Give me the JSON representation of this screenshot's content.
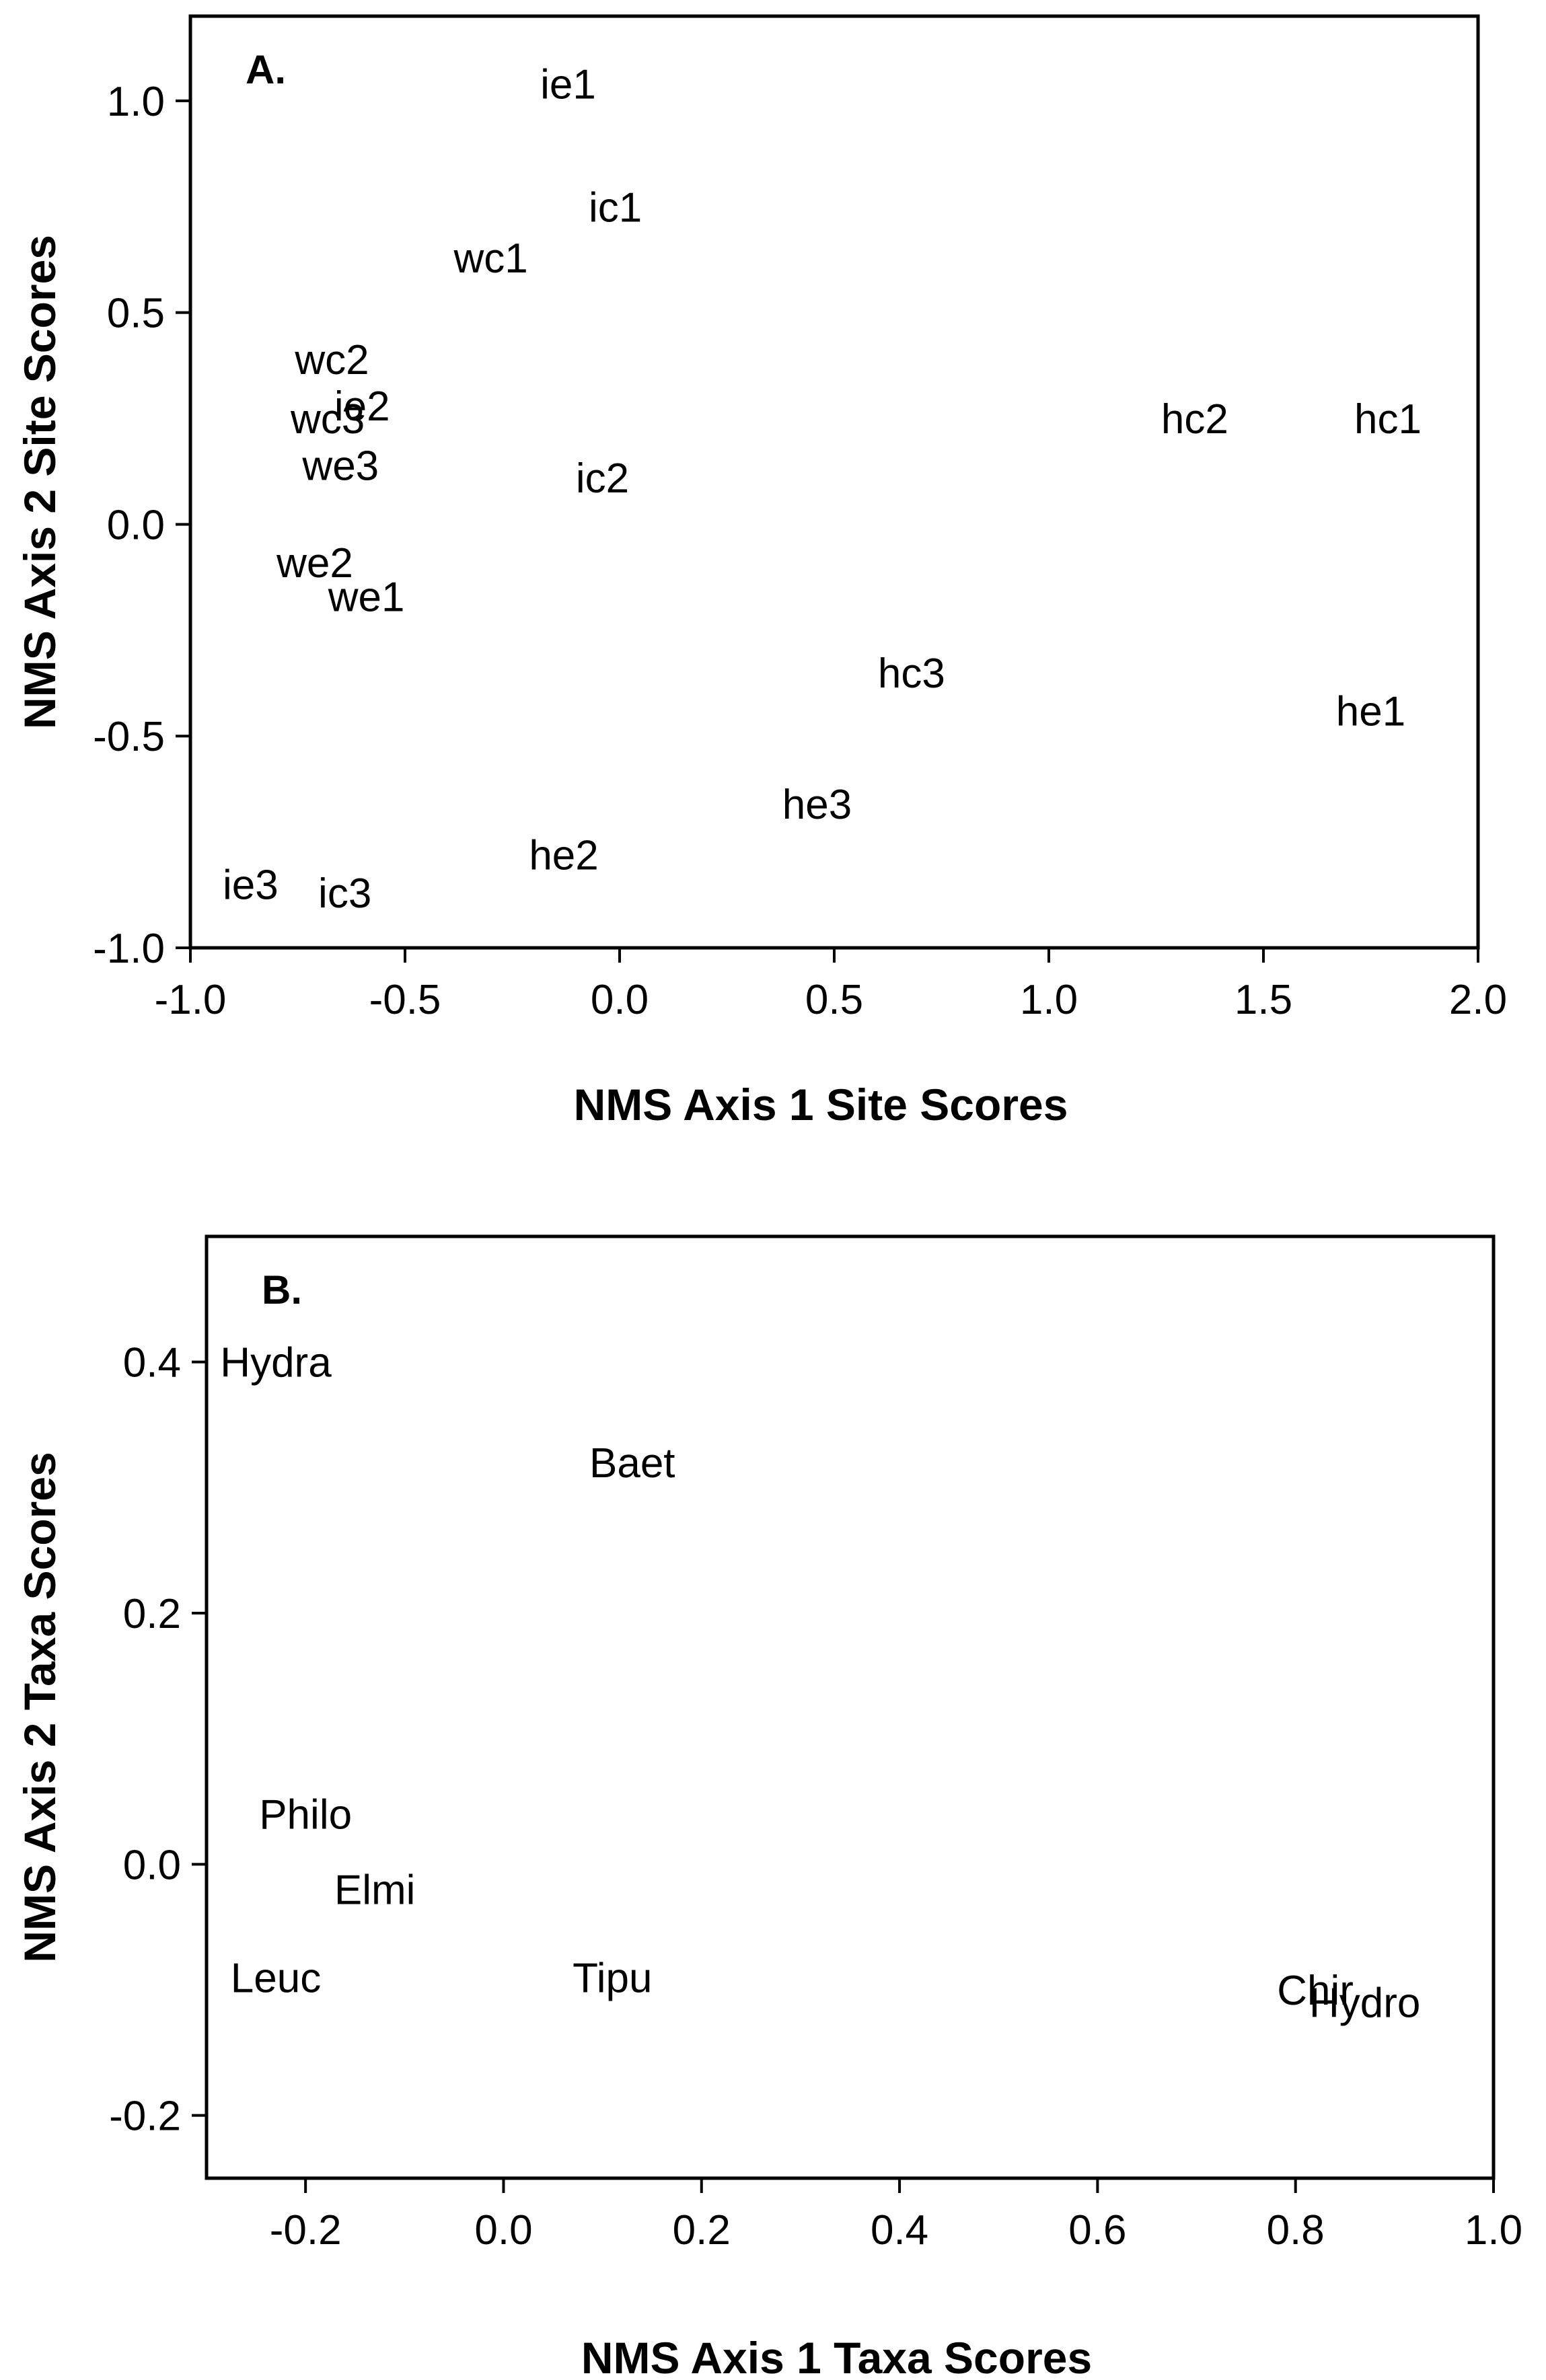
{
  "chart_data": [
    {
      "type": "scatter",
      "panel_label": "A.",
      "xlabel": "NMS Axis 1 Site Scores",
      "ylabel": "NMS Axis 2 Site Scores",
      "xlim": [
        -1.0,
        2.0
      ],
      "ylim": [
        -1.0,
        1.2
      ],
      "xticks": [
        -1.0,
        -0.5,
        0.0,
        0.5,
        1.0,
        1.5,
        2.0
      ],
      "yticks": [
        -1.0,
        -0.5,
        0.0,
        0.5,
        1.0
      ],
      "xtick_labels": [
        "-1.0",
        "-0.5",
        "0.0",
        "0.5",
        "1.0",
        "1.5",
        "2.0"
      ],
      "ytick_labels": [
        "-1.0",
        "-0.5",
        "0.0",
        "0.5",
        "1.0"
      ],
      "points": [
        {
          "label": "ie1",
          "x": -0.12,
          "y": 1.04
        },
        {
          "label": "ic1",
          "x": -0.01,
          "y": 0.75
        },
        {
          "label": "wc1",
          "x": -0.3,
          "y": 0.63
        },
        {
          "label": "wc2",
          "x": -0.67,
          "y": 0.39
        },
        {
          "label": "ie2",
          "x": -0.6,
          "y": 0.28
        },
        {
          "label": "wc3",
          "x": -0.68,
          "y": 0.25
        },
        {
          "label": "we3",
          "x": -0.65,
          "y": 0.14
        },
        {
          "label": "ic2",
          "x": -0.04,
          "y": 0.11
        },
        {
          "label": "hc2",
          "x": 1.34,
          "y": 0.25
        },
        {
          "label": "hc1",
          "x": 1.79,
          "y": 0.25
        },
        {
          "label": "we2",
          "x": -0.71,
          "y": -0.09
        },
        {
          "label": "we1",
          "x": -0.59,
          "y": -0.17
        },
        {
          "label": "hc3",
          "x": 0.68,
          "y": -0.35
        },
        {
          "label": "he1",
          "x": 1.75,
          "y": -0.44
        },
        {
          "label": "he3",
          "x": 0.46,
          "y": -0.66
        },
        {
          "label": "he2",
          "x": -0.13,
          "y": -0.78
        },
        {
          "label": "ie3",
          "x": -0.86,
          "y": -0.85
        },
        {
          "label": "ic3",
          "x": -0.64,
          "y": -0.87
        }
      ]
    },
    {
      "type": "scatter",
      "panel_label": "B.",
      "xlabel": "NMS Axis 1 Taxa Scores",
      "ylabel": "NMS Axis 2 Taxa Scores",
      "xlim": [
        -0.3,
        1.0
      ],
      "ylim": [
        -0.25,
        0.5
      ],
      "xticks": [
        -0.2,
        0.0,
        0.2,
        0.4,
        0.6,
        0.8,
        1.0
      ],
      "yticks": [
        -0.2,
        0.0,
        0.2,
        0.4
      ],
      "xtick_labels": [
        "-0.2",
        "0.0",
        "0.2",
        "0.4",
        "0.6",
        "0.8",
        "1.0"
      ],
      "ytick_labels": [
        "-0.2",
        "0.0",
        "0.2",
        "0.4"
      ],
      "points": [
        {
          "label": "Hydra",
          "x": -0.23,
          "y": 0.4
        },
        {
          "label": "Baet",
          "x": 0.13,
          "y": 0.32
        },
        {
          "label": "Philo",
          "x": -0.2,
          "y": 0.04
        },
        {
          "label": "Elmi",
          "x": -0.13,
          "y": -0.02
        },
        {
          "label": "Leuc",
          "x": -0.23,
          "y": -0.09
        },
        {
          "label": "Tipu",
          "x": 0.11,
          "y": -0.09
        },
        {
          "label": "Chir",
          "x": 0.82,
          "y": -0.1
        },
        {
          "label": "Hydro",
          "x": 0.87,
          "y": -0.11
        }
      ]
    }
  ]
}
